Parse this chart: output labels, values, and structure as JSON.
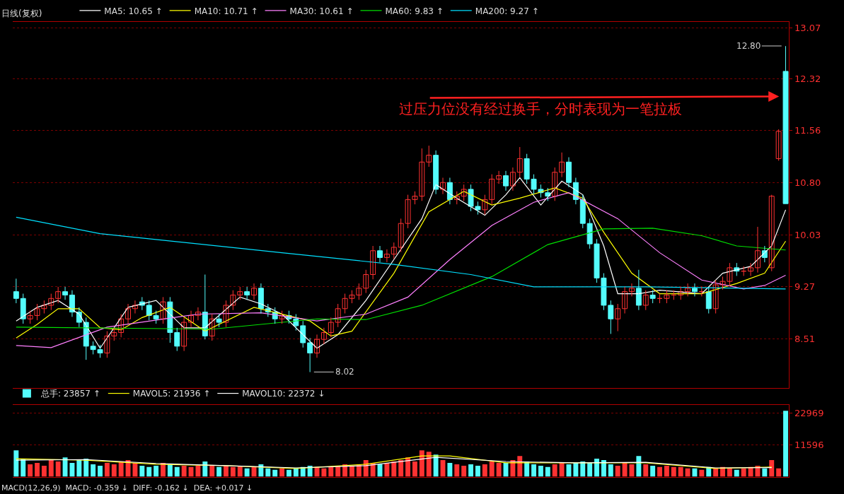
{
  "chart_data": [
    {
      "type": "candlestick",
      "title": "日线(复权)",
      "categories": [
        null,
        null,
        null,
        null,
        null,
        null,
        null,
        null,
        null,
        null,
        null,
        null,
        null,
        null,
        null,
        null,
        null,
        null,
        null,
        null,
        null,
        null,
        null,
        null,
        null,
        null,
        null,
        null,
        null,
        null,
        null,
        null,
        null,
        null,
        null,
        null,
        null,
        null,
        null,
        null,
        null,
        null,
        null,
        null,
        null,
        null,
        null,
        null,
        null,
        null,
        null,
        null,
        null,
        null,
        null,
        null,
        null,
        null,
        null,
        null,
        null,
        null,
        null,
        null,
        null,
        null,
        null,
        null,
        null,
        null,
        null,
        null,
        null,
        null,
        null,
        null,
        null,
        null,
        null,
        null,
        null,
        null,
        null,
        null,
        null,
        null,
        null,
        null,
        null,
        null,
        null,
        null,
        null,
        null,
        null,
        null,
        null,
        null,
        null,
        null,
        null,
        null,
        null,
        null,
        null,
        null,
        null,
        null,
        null,
        null,
        null
      ],
      "colors": [
        "#54fcfc",
        "#54fcfc",
        "#ff3232",
        "#ff3232",
        "#ff3232",
        "#ff3232",
        "#ff3232",
        "#54fcfc",
        "#54fcfc",
        "#54fcfc",
        "#54fcfc",
        "#54fcfc",
        "#54fcfc",
        "#ff3232",
        "#ff3232",
        "#ff3232",
        "#ff3232",
        "#ff3232",
        "#54fcfc",
        "#54fcfc",
        "#54fcfc",
        "#ff3232",
        "#54fcfc",
        "#54fcfc",
        "#ff3232",
        "#ff3232",
        "#ff3232",
        "#54fcfc",
        "#ff3232",
        "#54fcfc",
        "#ff3232",
        "#ff3232",
        "#ff3232",
        "#54fcfc",
        "#ff3232",
        "#54fcfc",
        "#54fcfc",
        "#54fcfc",
        "#ff3232",
        "#54fcfc",
        "#54fcfc",
        "#54fcfc",
        "#54fcfc",
        "#ff3232",
        "#ff3232",
        "#ff3232",
        "#ff3232",
        "#ff3232",
        "#ff3232",
        "#ff3232",
        "#ff3232",
        "#ff3232",
        "#54fcfc",
        "#ff3232",
        "#ff3232",
        "#ff3232",
        "#ff3232",
        "#ff3232",
        "#ff3232",
        "#ff3232",
        "#54fcfc",
        "#ff3232",
        "#54fcfc",
        "#ff3232",
        "#ff3232",
        "#54fcfc",
        "#54fcfc",
        "#ff3232",
        "#ff3232",
        "#ff3232",
        "#54fcfc",
        "#ff3232",
        "#ff3232",
        "#54fcfc",
        "#54fcfc",
        "#54fcfc",
        "#54fcfc",
        "#ff3232",
        "#ff3232",
        "#54fcfc",
        "#54fcfc",
        "#54fcfc",
        "#54fcfc",
        "#54fcfc",
        "#54fcfc",
        "#54fcfc",
        "#ff3232",
        "#ff3232",
        "#ff3232",
        "#54fcfc",
        "#ff3232",
        "#54fcfc",
        "#ff3232",
        "#ff3232",
        "#ff3232",
        "#ff3232",
        "#ff3232",
        "#54fcfc",
        "#ff3232",
        "#54fcfc",
        "#ff3232",
        "#ff3232",
        "#ff3232",
        "#54fcfc",
        "#ff3232",
        "#ff3232",
        "#ff3232",
        "#54fcfc",
        "#ff3232",
        "#ff3232",
        "#54fcfc"
      ],
      "ohlc": [
        [
          9.2,
          9.39,
          9.03,
          9.1
        ],
        [
          9.1,
          9.17,
          8.73,
          8.8
        ],
        [
          8.8,
          8.92,
          8.73,
          8.85
        ],
        [
          8.85,
          9.02,
          8.78,
          8.95
        ],
        [
          8.95,
          9.07,
          8.88,
          9.0
        ],
        [
          9.0,
          9.17,
          8.93,
          9.1
        ],
        [
          9.1,
          9.27,
          9.03,
          9.2
        ],
        [
          9.2,
          9.27,
          9.08,
          9.15
        ],
        [
          9.15,
          9.22,
          8.83,
          8.9
        ],
        [
          8.9,
          8.97,
          8.68,
          8.75
        ],
        [
          8.75,
          8.82,
          8.2,
          8.4
        ],
        [
          8.4,
          8.47,
          8.28,
          8.35
        ],
        [
          8.35,
          8.42,
          8.23,
          8.3
        ],
        [
          8.3,
          8.62,
          8.23,
          8.55
        ],
        [
          8.55,
          8.67,
          8.48,
          8.6
        ],
        [
          8.6,
          8.87,
          8.53,
          8.8
        ],
        [
          8.8,
          9.02,
          8.73,
          8.95
        ],
        [
          8.95,
          9.07,
          8.88,
          9.0
        ],
        [
          9.05,
          9.12,
          8.93,
          9.0
        ],
        [
          9.0,
          9.07,
          8.78,
          8.85
        ],
        [
          8.85,
          8.92,
          8.73,
          8.8
        ],
        [
          8.8,
          9.12,
          8.73,
          9.05
        ],
        [
          9.05,
          9.12,
          8.45,
          8.6
        ],
        [
          8.6,
          8.67,
          8.33,
          8.4
        ],
        [
          8.4,
          8.82,
          8.33,
          8.75
        ],
        [
          8.75,
          8.92,
          8.68,
          8.85
        ],
        [
          8.85,
          8.97,
          8.78,
          8.9
        ],
        [
          8.9,
          9.45,
          8.5,
          8.55
        ],
        [
          8.55,
          8.87,
          8.48,
          8.8
        ],
        [
          8.8,
          8.87,
          8.68,
          8.75
        ],
        [
          8.75,
          9.07,
          8.68,
          9.0
        ],
        [
          9.0,
          9.22,
          8.93,
          9.15
        ],
        [
          9.15,
          9.27,
          9.08,
          9.2
        ],
        [
          9.2,
          9.27,
          9.08,
          9.15
        ],
        [
          9.15,
          9.32,
          9.08,
          9.25
        ],
        [
          9.25,
          9.32,
          8.88,
          8.95
        ],
        [
          8.95,
          9.02,
          8.83,
          8.9
        ],
        [
          8.9,
          8.97,
          8.73,
          8.8
        ],
        [
          8.8,
          8.92,
          8.73,
          8.85
        ],
        [
          8.85,
          8.92,
          8.73,
          8.8
        ],
        [
          8.8,
          8.87,
          8.63,
          8.7
        ],
        [
          8.7,
          8.77,
          8.38,
          8.45
        ],
        [
          8.45,
          8.52,
          8.02,
          8.3
        ],
        [
          8.3,
          8.57,
          8.23,
          8.5
        ],
        [
          8.5,
          8.67,
          8.43,
          8.6
        ],
        [
          8.6,
          8.82,
          8.53,
          8.75
        ],
        [
          8.75,
          9.02,
          8.68,
          8.95
        ],
        [
          8.95,
          9.17,
          8.88,
          9.1
        ],
        [
          9.1,
          9.22,
          9.03,
          9.15
        ],
        [
          9.15,
          9.32,
          9.08,
          9.25
        ],
        [
          9.25,
          9.52,
          9.18,
          9.45
        ],
        [
          9.45,
          9.87,
          9.38,
          9.8
        ],
        [
          9.8,
          9.87,
          9.63,
          9.7
        ],
        [
          9.7,
          9.82,
          9.63,
          9.75
        ],
        [
          9.75,
          9.92,
          9.68,
          9.85
        ],
        [
          9.85,
          10.27,
          9.78,
          10.2
        ],
        [
          10.2,
          10.62,
          10.13,
          10.55
        ],
        [
          10.55,
          10.67,
          10.48,
          10.6
        ],
        [
          10.6,
          11.3,
          10.53,
          11.1
        ],
        [
          11.1,
          11.34,
          11.03,
          11.2
        ],
        [
          11.2,
          11.27,
          10.63,
          10.7
        ],
        [
          10.7,
          10.87,
          10.63,
          10.8
        ],
        [
          10.8,
          10.87,
          10.48,
          10.55
        ],
        [
          10.55,
          10.67,
          10.48,
          10.6
        ],
        [
          10.6,
          10.77,
          10.53,
          10.7
        ],
        [
          10.7,
          10.77,
          10.38,
          10.45
        ],
        [
          10.45,
          10.52,
          10.33,
          10.4
        ],
        [
          10.4,
          10.62,
          10.33,
          10.55
        ],
        [
          10.55,
          10.92,
          10.48,
          10.85
        ],
        [
          10.85,
          10.97,
          10.78,
          10.9
        ],
        [
          10.9,
          10.97,
          10.68,
          10.75
        ],
        [
          10.75,
          11.02,
          10.68,
          10.95
        ],
        [
          10.95,
          11.32,
          10.88,
          11.15
        ],
        [
          11.15,
          11.22,
          10.78,
          10.85
        ],
        [
          10.85,
          10.92,
          10.63,
          10.7
        ],
        [
          10.7,
          10.77,
          10.58,
          10.65
        ],
        [
          10.65,
          10.72,
          10.53,
          10.6
        ],
        [
          10.6,
          11.02,
          10.53,
          10.95
        ],
        [
          10.95,
          11.24,
          10.88,
          11.1
        ],
        [
          11.1,
          11.17,
          10.73,
          10.8
        ],
        [
          10.8,
          10.87,
          10.48,
          10.55
        ],
        [
          10.55,
          10.62,
          10.13,
          10.2
        ],
        [
          10.2,
          10.27,
          9.83,
          9.9
        ],
        [
          9.9,
          9.97,
          9.33,
          9.4
        ],
        [
          9.4,
          9.47,
          8.93,
          9.0
        ],
        [
          9.0,
          9.07,
          8.58,
          8.8
        ],
        [
          8.8,
          9.02,
          8.62,
          8.95
        ],
        [
          8.95,
          9.27,
          8.88,
          9.2
        ],
        [
          9.2,
          9.32,
          9.13,
          9.25
        ],
        [
          9.25,
          9.52,
          8.93,
          9.0
        ],
        [
          9.0,
          9.22,
          8.93,
          9.15
        ],
        [
          9.15,
          9.22,
          9.03,
          9.1
        ],
        [
          9.1,
          9.17,
          9.03,
          9.1
        ],
        [
          9.1,
          9.22,
          9.03,
          9.15
        ],
        [
          9.15,
          9.22,
          9.08,
          9.15
        ],
        [
          9.15,
          9.27,
          9.08,
          9.2
        ],
        [
          9.2,
          9.32,
          9.13,
          9.25
        ],
        [
          9.25,
          9.32,
          9.13,
          9.2
        ],
        [
          9.2,
          9.27,
          9.13,
          9.2
        ],
        [
          9.2,
          9.27,
          8.88,
          8.95
        ],
        [
          8.95,
          9.37,
          8.88,
          9.3
        ],
        [
          9.3,
          9.42,
          9.23,
          9.35
        ],
        [
          9.35,
          9.62,
          9.28,
          9.55
        ],
        [
          9.55,
          9.62,
          9.43,
          9.5
        ],
        [
          9.5,
          9.57,
          9.43,
          9.5
        ],
        [
          9.5,
          9.62,
          9.43,
          9.55
        ],
        [
          9.55,
          10.15,
          9.48,
          9.8
        ],
        [
          9.8,
          9.87,
          9.63,
          9.7
        ],
        [
          9.55,
          10.62,
          9.5,
          10.6
        ],
        [
          11.15,
          11.58,
          11.12,
          11.55
        ],
        [
          12.43,
          12.8,
          10.49,
          10.49
        ]
      ],
      "series": [
        {
          "type": "line",
          "name": "MA5: 10.65 ↑",
          "color": "#ffffff",
          "values": [
            8.77,
            null,
            null,
            8.97,
            null,
            null,
            9.07,
            null,
            null,
            8.87,
            null,
            null,
            8.37,
            null,
            null,
            null,
            8.97,
            null,
            null,
            null,
            9.07,
            null,
            null,
            null,
            8.67,
            null,
            null,
            8.67,
            null,
            null,
            null,
            null,
            9.12,
            null,
            null,
            9.02,
            null,
            null,
            8.87,
            null,
            null,
            null,
            null,
            8.37,
            null,
            null,
            8.57,
            null,
            null,
            null,
            9.07,
            null,
            null,
            null,
            9.67,
            null,
            null,
            null,
            10.27,
            null,
            10.77,
            null,
            null,
            10.57,
            null,
            null,
            null,
            10.32,
            null,
            null,
            10.62,
            null,
            10.87,
            null,
            null,
            10.47,
            null,
            null,
            10.82,
            null,
            null,
            10.62,
            null,
            null,
            9.87,
            null,
            9.17,
            null,
            null,
            9.17,
            null,
            null,
            9.22,
            null,
            null,
            null,
            null,
            null,
            9.17,
            null,
            null,
            9.47,
            null,
            null,
            null,
            9.57,
            null,
            null,
            9.87,
            null,
            10.4
          ]
        },
        {
          "type": "line",
          "name": "MA10: 10.71 ↑",
          "color": "#ffff00",
          "values": [
            8.52,
            null,
            null,
            8.72,
            null,
            null,
            8.95,
            null,
            null,
            8.95,
            null,
            null,
            8.67,
            null,
            null,
            8.64,
            null,
            null,
            8.82,
            null,
            null,
            null,
            8.97,
            null,
            null,
            null,
            null,
            8.62,
            null,
            null,
            null,
            null,
            null,
            null,
            8.97,
            null,
            null,
            null,
            null,
            null,
            null,
            null,
            8.77,
            null,
            null,
            8.55,
            null,
            null,
            8.62,
            null,
            null,
            null,
            null,
            null,
            9.47,
            null,
            null,
            null,
            null,
            10.37,
            null,
            null,
            null,
            null,
            10.67,
            null,
            null,
            null,
            10.47,
            null,
            null,
            null,
            10.57,
            null,
            null,
            null,
            null,
            10.72,
            null,
            null,
            null,
            10.57,
            null,
            null,
            10.07,
            null,
            null,
            null,
            9.47,
            null,
            null,
            null,
            9.17,
            null,
            null,
            null,
            null,
            null,
            9.17,
            null,
            null,
            null,
            null,
            9.32,
            null,
            null,
            null,
            9.47,
            null,
            null,
            9.94
          ]
        },
        {
          "type": "line",
          "name": "MA30: 10.61 ↑",
          "color": "#ff80ff",
          "values": [
            8.41,
            null,
            null,
            null,
            null,
            8.38,
            null,
            null,
            null,
            null,
            null,
            null,
            null,
            8.68,
            null,
            null,
            null,
            null,
            null,
            null,
            null,
            null,
            null,
            null,
            null,
            null,
            8.87,
            null,
            null,
            null,
            null,
            null,
            null,
            null,
            null,
            8.89,
            null,
            null,
            null,
            null,
            null,
            null,
            null,
            8.77,
            null,
            null,
            null,
            null,
            null,
            null,
            8.87,
            null,
            null,
            null,
            null,
            null,
            9.12,
            null,
            null,
            null,
            null,
            null,
            9.67,
            null,
            null,
            null,
            null,
            null,
            10.17,
            null,
            null,
            null,
            null,
            null,
            10.51,
            null,
            null,
            null,
            null,
            10.65,
            null,
            null,
            null,
            null,
            null,
            null,
            10.27,
            null,
            null,
            null,
            null,
            null,
            9.77,
            null,
            null,
            null,
            null,
            null,
            9.37,
            null,
            null,
            null,
            null,
            null,
            9.24,
            null,
            null,
            9.29,
            null,
            null,
            9.44
          ]
        },
        {
          "type": "line",
          "name": "MA60: 9.83 ↑",
          "color": "#00e000",
          "values": [
            8.68,
            null,
            null,
            null,
            null,
            null,
            null,
            null,
            null,
            null,
            null,
            null,
            null,
            null,
            null,
            null,
            null,
            null,
            null,
            null,
            null,
            null,
            null,
            null,
            null,
            null,
            null,
            null,
            8.65,
            null,
            null,
            null,
            null,
            null,
            null,
            null,
            null,
            null,
            null,
            null,
            null,
            null,
            null,
            8.8,
            null,
            null,
            null,
            null,
            null,
            null,
            8.79,
            null,
            null,
            null,
            null,
            null,
            null,
            null,
            9.0,
            null,
            null,
            null,
            null,
            null,
            null,
            null,
            null,
            null,
            9.42,
            null,
            null,
            null,
            null,
            null,
            null,
            null,
            9.89,
            null,
            null,
            null,
            null,
            null,
            null,
            null,
            10.12,
            null,
            null,
            null,
            null,
            null,
            null,
            10.13,
            null,
            null,
            null,
            null,
            null,
            null,
            10.02,
            null,
            null,
            null,
            null,
            9.87,
            null,
            null,
            null,
            null,
            null,
            null,
            9.81
          ]
        },
        {
          "type": "line",
          "name": "MA200: 9.27 ↑",
          "color": "#00e0ff",
          "values": [
            10.29,
            null,
            null,
            null,
            null,
            null,
            null,
            null,
            null,
            null,
            null,
            null,
            10.05,
            null,
            null,
            null,
            null,
            null,
            null,
            null,
            null,
            null,
            null,
            null,
            null,
            null,
            null,
            null,
            null,
            null,
            null,
            null,
            null,
            null,
            null,
            null,
            null,
            null,
            9.77,
            null,
            null,
            null,
            null,
            null,
            null,
            null,
            null,
            null,
            null,
            null,
            null,
            null,
            null,
            null,
            9.6,
            null,
            null,
            null,
            null,
            null,
            null,
            null,
            null,
            null,
            null,
            9.45,
            null,
            null,
            null,
            null,
            null,
            null,
            null,
            null,
            9.27,
            null,
            null,
            null,
            null,
            null,
            null,
            null,
            null,
            null,
            null,
            null,
            null,
            null,
            null,
            null,
            9.27,
            null,
            null,
            null,
            null,
            null,
            null,
            null,
            null,
            null,
            null,
            null,
            null,
            null,
            null,
            null,
            null,
            null,
            null,
            null,
            9.24
          ]
        }
      ],
      "ylim": [
        7.79,
        13.15
      ],
      "yticks": [
        {
          "value": 8.51,
          "label": "8.51"
        },
        {
          "value": 9.27,
          "label": "9.27"
        },
        {
          "value": 10.03,
          "label": "10.03"
        },
        {
          "value": 10.8,
          "label": "10.80"
        },
        {
          "value": 11.56,
          "label": "11.56"
        },
        {
          "value": 12.32,
          "label": "12.32"
        },
        {
          "value": 13.07,
          "label": "13.07"
        }
      ],
      "grid": "y",
      "legend": "top left",
      "annotations": [
        "过压力位没有经过换手，分时表现为一笔拉板",
        "12.80",
        "8.02"
      ]
    },
    {
      "type": "bar",
      "categories": [
        null,
        null,
        null,
        null,
        null,
        null,
        null,
        null,
        null,
        null,
        null,
        null,
        null,
        null,
        null,
        null,
        null,
        null,
        null,
        null,
        null,
        null,
        null,
        null,
        null,
        null,
        null,
        null,
        null,
        null,
        null,
        null,
        null,
        null,
        null,
        null,
        null,
        null,
        null,
        null,
        null,
        null,
        null,
        null,
        null,
        null,
        null,
        null,
        null,
        null,
        null,
        null,
        null,
        null,
        null,
        null,
        null,
        null,
        null,
        null,
        null,
        null,
        null,
        null,
        null,
        null,
        null,
        null,
        null,
        null,
        null,
        null,
        null,
        null,
        null,
        null,
        null,
        null,
        null,
        null,
        null,
        null,
        null,
        null,
        null,
        null,
        null,
        null,
        null,
        null,
        null,
        null,
        null,
        null,
        null,
        null,
        null,
        null,
        null,
        null,
        null,
        null,
        null,
        null,
        null,
        null,
        null,
        null,
        null,
        null,
        null
      ],
      "series": [
        {
          "type": "bar",
          "name": "总手: 23857 ↑",
          "color": "#54fcfc",
          "values": [
            9500,
            6500,
            4500,
            5000,
            4000,
            6000,
            5500,
            7000,
            5000,
            6000,
            6500,
            4500,
            4000,
            5000,
            4500,
            5500,
            6000,
            5000,
            4000,
            3500,
            4000,
            5000,
            4500,
            3500,
            4000,
            3500,
            4000,
            5500,
            4000,
            3500,
            4000,
            3500,
            4000,
            3000,
            3500,
            4500,
            3000,
            2500,
            3000,
            2500,
            3000,
            3500,
            4000,
            3500,
            3000,
            3500,
            4000,
            4500,
            4000,
            4500,
            6000,
            5000,
            4500,
            5000,
            5500,
            6000,
            7000,
            5500,
            9500,
            9000,
            8000,
            6000,
            5000,
            4500,
            4000,
            4500,
            4000,
            4500,
            5500,
            5000,
            5000,
            6000,
            7500,
            5500,
            4500,
            4000,
            3500,
            4500,
            5000,
            4500,
            5000,
            5500,
            5000,
            6500,
            6000,
            4500,
            4000,
            5000,
            4500,
            7500,
            4500,
            4000,
            3500,
            4000,
            3500,
            3500,
            3000,
            3000,
            2500,
            3500,
            3000,
            3500,
            3000,
            2500,
            3000,
            3500,
            4000,
            3000,
            6000,
            3000,
            23857
          ],
          "colors": [
            "#54fcfc",
            "#54fcfc",
            "#ff3232",
            "#ff3232",
            "#ff3232",
            "#ff3232",
            "#ff3232",
            "#54fcfc",
            "#54fcfc",
            "#54fcfc",
            "#54fcfc",
            "#54fcfc",
            "#54fcfc",
            "#ff3232",
            "#ff3232",
            "#ff3232",
            "#ff3232",
            "#ff3232",
            "#54fcfc",
            "#54fcfc",
            "#54fcfc",
            "#ff3232",
            "#54fcfc",
            "#54fcfc",
            "#ff3232",
            "#ff3232",
            "#ff3232",
            "#54fcfc",
            "#ff3232",
            "#54fcfc",
            "#ff3232",
            "#ff3232",
            "#ff3232",
            "#54fcfc",
            "#ff3232",
            "#54fcfc",
            "#54fcfc",
            "#54fcfc",
            "#ff3232",
            "#54fcfc",
            "#54fcfc",
            "#54fcfc",
            "#54fcfc",
            "#ff3232",
            "#ff3232",
            "#ff3232",
            "#ff3232",
            "#ff3232",
            "#ff3232",
            "#ff3232",
            "#ff3232",
            "#ff3232",
            "#54fcfc",
            "#ff3232",
            "#ff3232",
            "#ff3232",
            "#ff3232",
            "#ff3232",
            "#ff3232",
            "#ff3232",
            "#54fcfc",
            "#ff3232",
            "#54fcfc",
            "#ff3232",
            "#ff3232",
            "#54fcfc",
            "#54fcfc",
            "#ff3232",
            "#ff3232",
            "#ff3232",
            "#54fcfc",
            "#ff3232",
            "#ff3232",
            "#54fcfc",
            "#54fcfc",
            "#54fcfc",
            "#54fcfc",
            "#ff3232",
            "#ff3232",
            "#54fcfc",
            "#54fcfc",
            "#54fcfc",
            "#54fcfc",
            "#54fcfc",
            "#54fcfc",
            "#54fcfc",
            "#ff3232",
            "#ff3232",
            "#ff3232",
            "#54fcfc",
            "#ff3232",
            "#54fcfc",
            "#ff3232",
            "#ff3232",
            "#ff3232",
            "#ff3232",
            "#ff3232",
            "#54fcfc",
            "#ff3232",
            "#54fcfc",
            "#ff3232",
            "#ff3232",
            "#ff3232",
            "#54fcfc",
            "#ff3232",
            "#ff3232",
            "#ff3232",
            "#54fcfc",
            "#ff3232",
            "#ff3232",
            "#54fcfc"
          ]
        },
        {
          "type": "line",
          "name": "MAVOL5: 21936 ↑",
          "color": "#ffff00",
          "values": [
            6500,
            null,
            null,
            null,
            null,
            null,
            null,
            null,
            null,
            null,
            6000,
            null,
            null,
            null,
            null,
            null,
            null,
            null,
            null,
            null,
            4500,
            null,
            null,
            null,
            null,
            null,
            null,
            null,
            null,
            null,
            4000,
            null,
            null,
            null,
            null,
            null,
            null,
            null,
            null,
            null,
            3000,
            null,
            null,
            null,
            null,
            null,
            null,
            null,
            null,
            null,
            4500,
            null,
            null,
            null,
            null,
            null,
            null,
            null,
            7500,
            null,
            null,
            null,
            7500,
            null,
            null,
            null,
            null,
            null,
            null,
            null,
            5000,
            null,
            null,
            null,
            null,
            null,
            null,
            null,
            null,
            null,
            5000,
            null,
            null,
            null,
            null,
            null,
            null,
            null,
            null,
            null,
            5000,
            null,
            null,
            null,
            null,
            null,
            null,
            null,
            null,
            null,
            3000,
            null,
            null,
            null,
            null,
            null,
            null,
            null,
            3500,
            null,
            null
          ]
        },
        {
          "type": "line",
          "name": "MAVOL10: 22372 ↓",
          "color": "#ffffff",
          "values": [
            6000,
            null,
            null,
            null,
            null,
            null,
            null,
            null,
            null,
            null,
            6200,
            null,
            null,
            null,
            null,
            null,
            null,
            null,
            null,
            null,
            4800,
            null,
            null,
            null,
            null,
            null,
            null,
            null,
            null,
            null,
            4000,
            null,
            null,
            null,
            null,
            null,
            null,
            null,
            null,
            null,
            3200,
            null,
            null,
            null,
            null,
            null,
            null,
            null,
            null,
            null,
            4000,
            null,
            null,
            null,
            null,
            null,
            null,
            null,
            null,
            null,
            7000,
            null,
            null,
            null,
            null,
            null,
            null,
            null,
            null,
            null,
            5500,
            null,
            null,
            null,
            null,
            null,
            null,
            null,
            null,
            null,
            5000,
            null,
            null,
            null,
            null,
            null,
            null,
            null,
            null,
            null,
            5200,
            null,
            null,
            null,
            null,
            null,
            null,
            null,
            null,
            null,
            3200,
            null,
            null,
            null,
            null,
            null,
            null,
            null,
            3300,
            null,
            null
          ]
        }
      ],
      "ylim": [
        0,
        25900
      ],
      "yticks": [
        11596,
        22969
      ],
      "grid": "y",
      "legend": "top left",
      "annotations": [
        "MACD(12,26,9)  MACD: -0.359 ↓  DIFF: -0.162 ↓  DEA: +0.017 ↓"
      ]
    }
  ]
}
